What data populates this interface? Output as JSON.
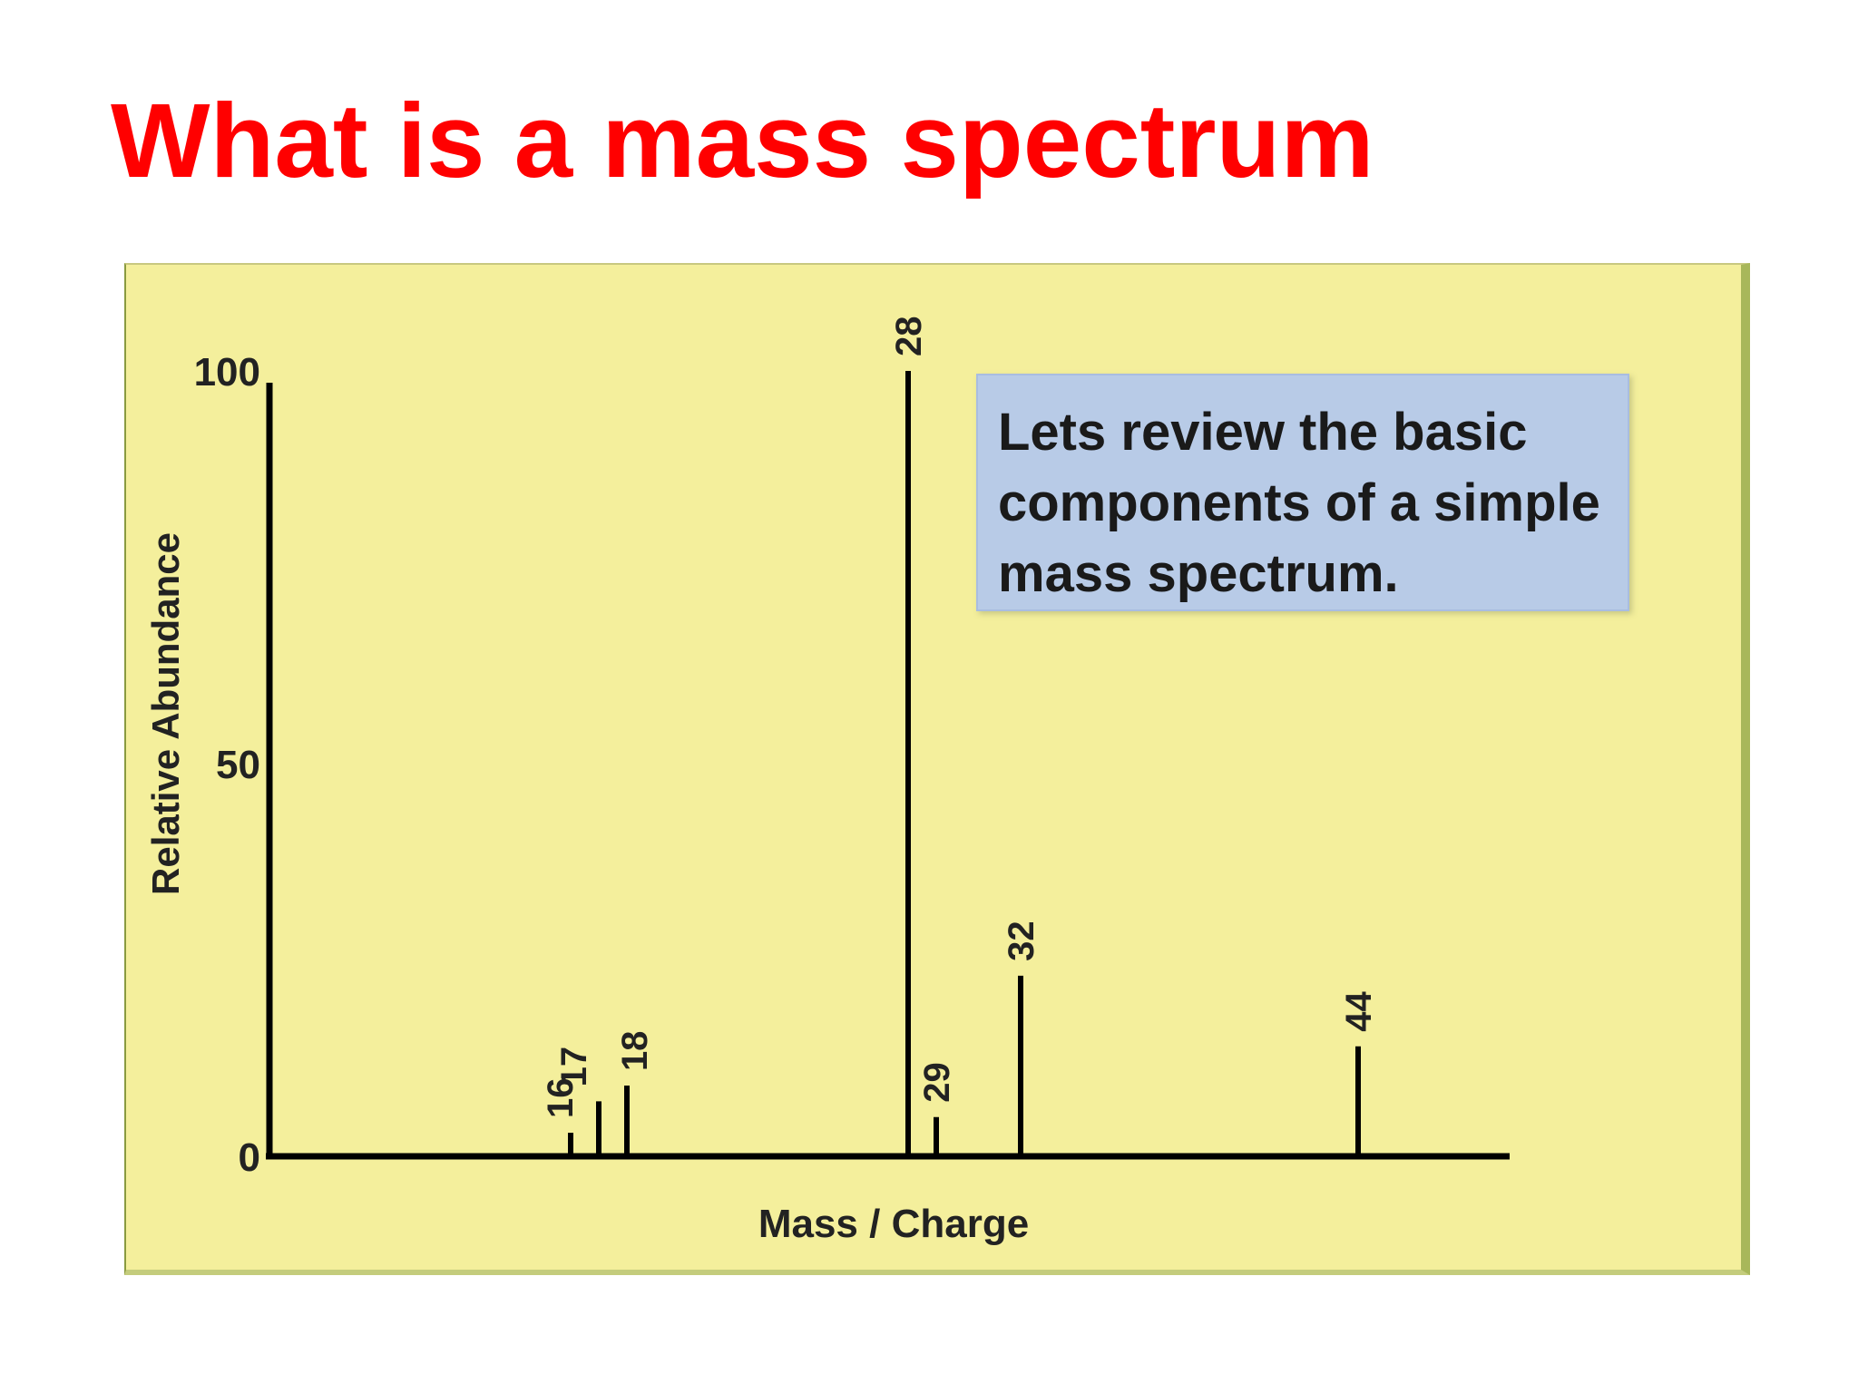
{
  "slide": {
    "title": "What is a mass spectrum"
  },
  "callout": {
    "text": "Lets review the basic components of a simple mass spectrum."
  },
  "colors": {
    "title": "#ff0000",
    "panel_background": "#f4ef9c",
    "callout_background": "#b8cbe7",
    "axis_and_bars": "#000000"
  },
  "chart_data": {
    "type": "bar",
    "title": "",
    "xlabel": "Mass / Charge",
    "ylabel": "Relative Abundance",
    "ylim": [
      0,
      100
    ],
    "yticks": [
      "0",
      "50",
      "100"
    ],
    "grid": false,
    "peaks": [
      {
        "label": "16",
        "x": 16,
        "y": 3
      },
      {
        "label": "17",
        "x": 17,
        "y": 7
      },
      {
        "label": "18",
        "x": 18,
        "y": 9
      },
      {
        "label": "28",
        "x": 28,
        "y": 100
      },
      {
        "label": "29",
        "x": 29,
        "y": 5
      },
      {
        "label": "32",
        "x": 32,
        "y": 23
      },
      {
        "label": "44",
        "x": 44,
        "y": 14
      }
    ]
  }
}
